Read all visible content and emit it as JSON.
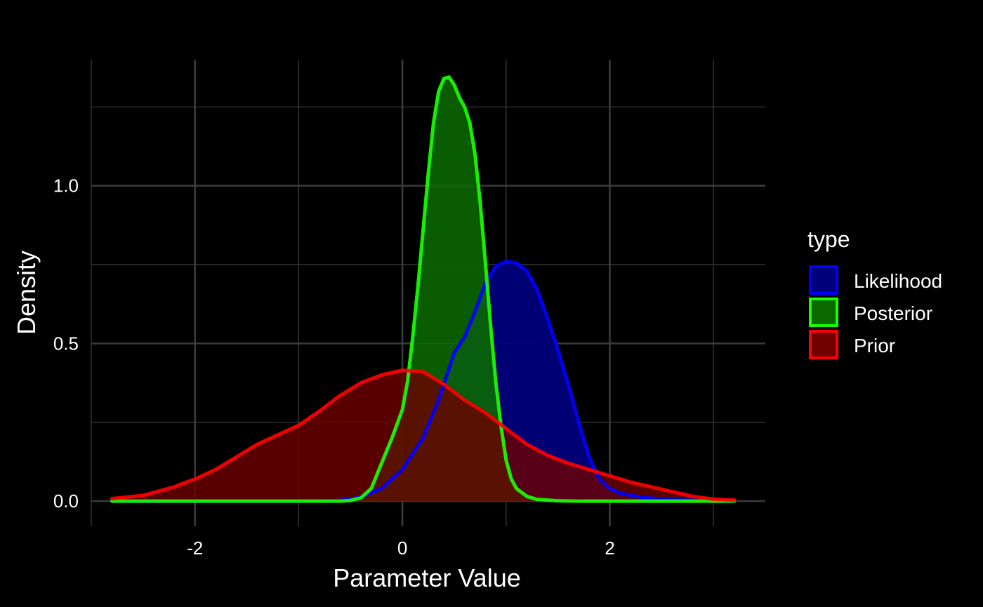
{
  "chart_data": {
    "type": "area",
    "title": "",
    "xlabel": "Parameter Value",
    "ylabel": "Density",
    "xlim": [
      -3.0,
      3.5
    ],
    "ylim": [
      -0.08,
      1.4
    ],
    "x_ticks": [
      -2,
      0,
      2
    ],
    "x_tick_labels": [
      "-2",
      "0",
      "2"
    ],
    "y_ticks": [
      0.0,
      0.5,
      1.0
    ],
    "y_tick_labels": [
      "0.0",
      "0.5",
      "1.0"
    ],
    "x_minor_ticks": [
      -3,
      -1,
      1,
      3
    ],
    "y_minor_ticks": [
      0.25,
      0.75,
      1.25
    ],
    "grid": true,
    "background": "#000000",
    "grid_color": "#3a3a3a",
    "legend": {
      "title": "type",
      "placement": "right",
      "entries": [
        "Likelihood",
        "Posterior",
        "Prior"
      ]
    },
    "series": [
      {
        "name": "Likelihood",
        "line_color": "#0000ff",
        "fill_color": "#00007a",
        "fill_opacity": 0.95,
        "points": [
          [
            -2.8,
            0.0
          ],
          [
            -1.0,
            0.0
          ],
          [
            -0.6,
            0.002
          ],
          [
            -0.4,
            0.012
          ],
          [
            -0.2,
            0.04
          ],
          [
            0.0,
            0.1
          ],
          [
            0.2,
            0.2
          ],
          [
            0.35,
            0.32
          ],
          [
            0.5,
            0.47
          ],
          [
            0.6,
            0.52
          ],
          [
            0.7,
            0.6
          ],
          [
            0.8,
            0.69
          ],
          [
            0.9,
            0.745
          ],
          [
            1.0,
            0.76
          ],
          [
            1.1,
            0.755
          ],
          [
            1.2,
            0.73
          ],
          [
            1.3,
            0.67
          ],
          [
            1.4,
            0.58
          ],
          [
            1.5,
            0.48
          ],
          [
            1.6,
            0.37
          ],
          [
            1.7,
            0.25
          ],
          [
            1.8,
            0.14
          ],
          [
            1.9,
            0.07
          ],
          [
            2.0,
            0.04
          ],
          [
            2.1,
            0.025
          ],
          [
            2.3,
            0.012
          ],
          [
            2.6,
            0.004
          ],
          [
            3.0,
            0.001
          ],
          [
            3.2,
            0.0
          ]
        ]
      },
      {
        "name": "Posterior",
        "line_color": "#1aff00",
        "fill_color": "#0a6a00",
        "fill_opacity": 0.88,
        "points": [
          [
            -2.8,
            0.0
          ],
          [
            -0.6,
            0.0
          ],
          [
            -0.5,
            0.002
          ],
          [
            -0.4,
            0.01
          ],
          [
            -0.3,
            0.04
          ],
          [
            -0.2,
            0.12
          ],
          [
            -0.1,
            0.2
          ],
          [
            0.0,
            0.29
          ],
          [
            0.05,
            0.38
          ],
          [
            0.1,
            0.52
          ],
          [
            0.15,
            0.68
          ],
          [
            0.2,
            0.86
          ],
          [
            0.25,
            1.04
          ],
          [
            0.3,
            1.2
          ],
          [
            0.35,
            1.3
          ],
          [
            0.4,
            1.34
          ],
          [
            0.45,
            1.345
          ],
          [
            0.5,
            1.32
          ],
          [
            0.55,
            1.28
          ],
          [
            0.6,
            1.25
          ],
          [
            0.65,
            1.2
          ],
          [
            0.7,
            1.1
          ],
          [
            0.75,
            0.95
          ],
          [
            0.8,
            0.76
          ],
          [
            0.85,
            0.56
          ],
          [
            0.9,
            0.38
          ],
          [
            0.95,
            0.24
          ],
          [
            1.0,
            0.13
          ],
          [
            1.05,
            0.07
          ],
          [
            1.1,
            0.04
          ],
          [
            1.2,
            0.015
          ],
          [
            1.3,
            0.005
          ],
          [
            1.5,
            0.001
          ],
          [
            1.7,
            0.0
          ],
          [
            3.2,
            0.0
          ]
        ]
      },
      {
        "name": "Prior",
        "line_color": "#ff0000",
        "fill_color": "#6e0000",
        "fill_opacity": 0.8,
        "points": [
          [
            -2.8,
            0.008
          ],
          [
            -2.5,
            0.018
          ],
          [
            -2.2,
            0.045
          ],
          [
            -2.0,
            0.07
          ],
          [
            -1.8,
            0.1
          ],
          [
            -1.6,
            0.14
          ],
          [
            -1.4,
            0.18
          ],
          [
            -1.2,
            0.21
          ],
          [
            -1.0,
            0.24
          ],
          [
            -0.8,
            0.285
          ],
          [
            -0.6,
            0.335
          ],
          [
            -0.4,
            0.375
          ],
          [
            -0.2,
            0.4
          ],
          [
            0.0,
            0.415
          ],
          [
            0.2,
            0.41
          ],
          [
            0.4,
            0.37
          ],
          [
            0.6,
            0.32
          ],
          [
            0.8,
            0.28
          ],
          [
            1.0,
            0.23
          ],
          [
            1.2,
            0.18
          ],
          [
            1.4,
            0.145
          ],
          [
            1.6,
            0.12
          ],
          [
            1.8,
            0.1
          ],
          [
            2.0,
            0.08
          ],
          [
            2.2,
            0.06
          ],
          [
            2.4,
            0.045
          ],
          [
            2.6,
            0.03
          ],
          [
            2.8,
            0.015
          ],
          [
            3.0,
            0.006
          ],
          [
            3.2,
            0.003
          ]
        ]
      }
    ]
  }
}
